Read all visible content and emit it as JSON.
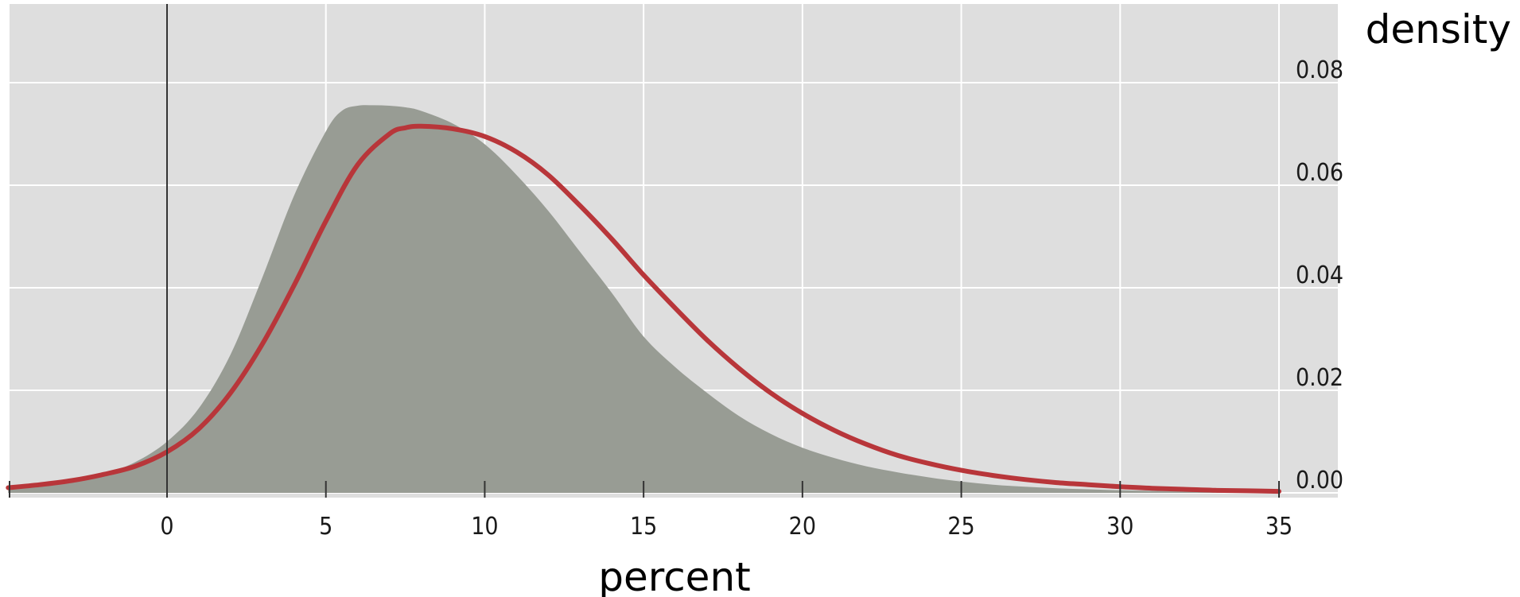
{
  "chart_data": {
    "type": "area",
    "title": "",
    "xlabel": "percent",
    "ylabel": "density",
    "xlim": [
      -5,
      35
    ],
    "ylim": [
      0,
      0.1
    ],
    "x_ticks": [
      0,
      5,
      10,
      15,
      20,
      25,
      30,
      35
    ],
    "y_ticks": [
      0.0,
      0.02,
      0.04,
      0.06,
      0.08
    ],
    "y_tick_labels": [
      "0.00",
      "0.02",
      "0.04",
      "0.06",
      "0.08"
    ],
    "grid": true,
    "vertical_reference_line_x": 0,
    "colors": {
      "panel_background": "#dedede",
      "grid": "#ffffff",
      "filled_density": "#989c94",
      "line_density": "#b8363a",
      "reference_line": "#333333"
    },
    "series": [
      {
        "kind": "filled",
        "x": [
          -5,
          -4,
          -3,
          -2,
          -1,
          0,
          1,
          2,
          3,
          4,
          5,
          5.5,
          6,
          6.5,
          7,
          7.5,
          8,
          9,
          10,
          11,
          12,
          13,
          14,
          15,
          16,
          17,
          18,
          19,
          20,
          21,
          22,
          23,
          24,
          25,
          26,
          27,
          28,
          29,
          30,
          31,
          32,
          33,
          34,
          35
        ],
        "values": [
          0.0008,
          0.0013,
          0.0022,
          0.0036,
          0.006,
          0.01,
          0.0165,
          0.027,
          0.042,
          0.058,
          0.0705,
          0.0745,
          0.0755,
          0.0756,
          0.0755,
          0.0752,
          0.0745,
          0.072,
          0.068,
          0.062,
          0.055,
          0.047,
          0.039,
          0.0305,
          0.0245,
          0.0195,
          0.015,
          0.0115,
          0.0088,
          0.0068,
          0.0052,
          0.004,
          0.003,
          0.0022,
          0.0016,
          0.0012,
          0.0009,
          0.0007,
          0.0005,
          0.0004,
          0.0003,
          0.0002,
          0.0001,
          0.0001
        ]
      },
      {
        "kind": "line",
        "x": [
          -5,
          -4,
          -3,
          -2,
          -1,
          0,
          1,
          2,
          3,
          4,
          5,
          6,
          7,
          7.5,
          8,
          9,
          10,
          11,
          12,
          13,
          14,
          15,
          16,
          17,
          18,
          19,
          20,
          21,
          22,
          23,
          24,
          25,
          26,
          27,
          28,
          29,
          30,
          31,
          32,
          33,
          34,
          35
        ],
        "values": [
          0.001,
          0.0016,
          0.0024,
          0.0036,
          0.0052,
          0.008,
          0.0125,
          0.0195,
          0.029,
          0.0405,
          0.053,
          0.064,
          0.07,
          0.0712,
          0.0715,
          0.071,
          0.0695,
          0.0665,
          0.062,
          0.056,
          0.0495,
          0.0425,
          0.036,
          0.0298,
          0.0243,
          0.0195,
          0.0155,
          0.0122,
          0.0095,
          0.0073,
          0.0057,
          0.0044,
          0.0034,
          0.0026,
          0.002,
          0.0016,
          0.0012,
          0.0009,
          0.0007,
          0.0005,
          0.0004,
          0.0003
        ]
      }
    ]
  }
}
